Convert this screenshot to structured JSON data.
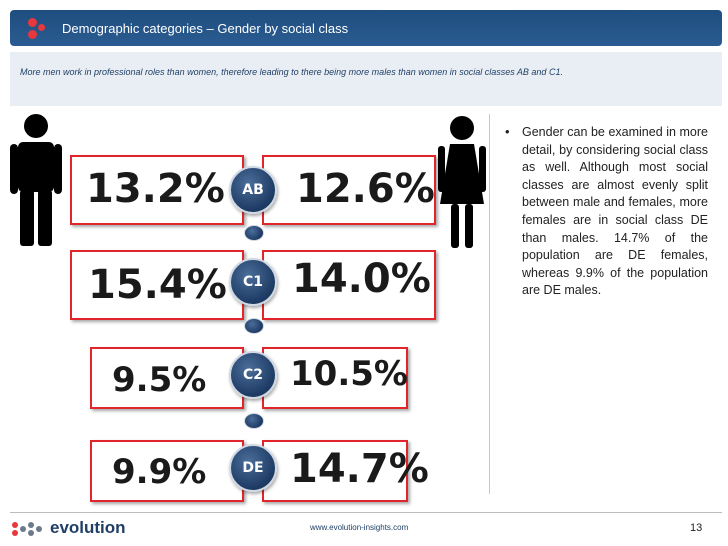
{
  "header": {
    "title": "Demographic categories – Gender by social class"
  },
  "subtitle": "More men work in professional roles than women, therefore leading to there being more males than women in social classes AB and C1.",
  "classes": [
    {
      "label": "AB",
      "male": "13.2%",
      "female": "12.6%"
    },
    {
      "label": "C1",
      "male": "15.4%",
      "female": "14.0%"
    },
    {
      "label": "C2",
      "male": "9.5%",
      "female": "10.5%"
    },
    {
      "label": "DE",
      "male": "9.9%",
      "female": "14.7%"
    }
  ],
  "bullet": {
    "text": "Gender can be examined in more detail, by considering social class as well. Although most social classes are almost evenly split between male and females, more females are in social class DE than males. 14.7% of the population are DE females, whereas 9.9% of the population are DE males."
  },
  "footer": {
    "logo_text": "evolution",
    "url": "www.evolution-insights.com",
    "page": "13"
  },
  "colors": {
    "header_bg": "#1e4d7f",
    "accent_red": "#e0262b",
    "circle_blue": "#1d3a63"
  },
  "icons": {
    "male": "male-figure-icon",
    "female": "female-figure-icon"
  }
}
